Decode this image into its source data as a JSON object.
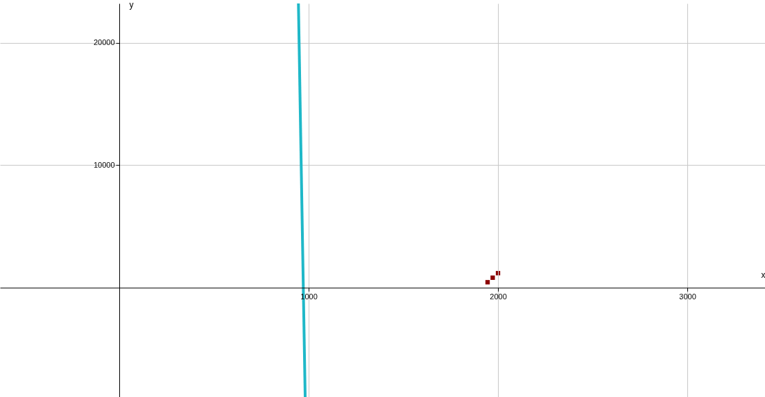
{
  "chart_data": {
    "type": "line",
    "xlabel": "x",
    "ylabel": "y",
    "xlim": [
      -630,
      3410
    ],
    "ylim": [
      -9200,
      23200
    ],
    "xticks": [
      1000,
      2000,
      3000
    ],
    "yticks": [
      10000,
      20000
    ],
    "grid": true,
    "series": [
      {
        "type": "line",
        "color": "#1fb8c8",
        "x": [
          946,
          982
        ],
        "values": [
          23200,
          -9200
        ]
      },
      {
        "type": "scatter",
        "color": "#8b0000",
        "marker": "square",
        "x": [
          1945,
          1972,
          2000
        ],
        "values": [
          450,
          820,
          1190
        ]
      }
    ]
  }
}
